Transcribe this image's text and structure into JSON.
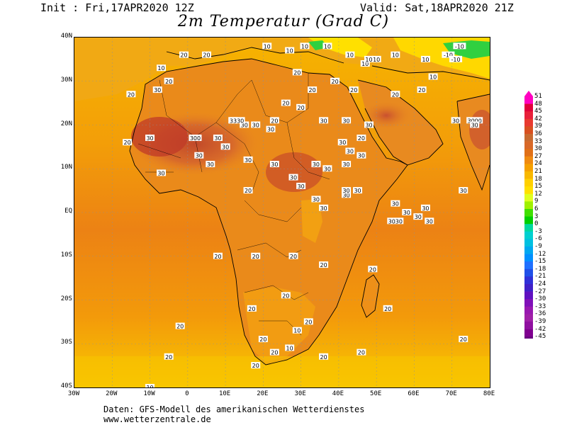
{
  "header": {
    "init": "Init : Fri,17APR2020 12Z",
    "valid": "Valid: Sat,18APR2020 21Z",
    "title": "2m Temperatur (Grad C)"
  },
  "footer": {
    "line1": "Daten: GFS-Modell des amerikanischen Wetterdienstes",
    "line2": "www.wetterzentrale.de"
  },
  "axes": {
    "lat_labels": [
      "40N",
      "30N",
      "20N",
      "10N",
      "EQ",
      "10S",
      "20S",
      "30S",
      "40S"
    ],
    "lon_labels": [
      "30W",
      "20W",
      "10W",
      "0",
      "10E",
      "20E",
      "30E",
      "40E",
      "50E",
      "60E",
      "70E",
      "80E"
    ]
  },
  "colorbar": {
    "labels": [
      "51",
      "48",
      "45",
      "42",
      "39",
      "36",
      "33",
      "30",
      "27",
      "24",
      "21",
      "18",
      "15",
      "12",
      "9",
      "6",
      "3",
      "0",
      "-3",
      "-6",
      "-9",
      "-12",
      "-15",
      "-18",
      "-21",
      "-24",
      "-27",
      "-30",
      "-33",
      "-36",
      "-39",
      "-42",
      "-45"
    ],
    "colors": [
      "#ff00c0",
      "#e0003a",
      "#e8203a",
      "#e83a30",
      "#d85020",
      "#c86a30",
      "#d86828",
      "#e07018",
      "#ef8a10",
      "#f5a000",
      "#f8b800",
      "#ffd000",
      "#ffe000",
      "#e0ff20",
      "#a0f000",
      "#40e000",
      "#00d000",
      "#00d8a0",
      "#00d0d0",
      "#00c0e0",
      "#00a8f0",
      "#0090ff",
      "#2070ff",
      "#2050e8",
      "#3030d8",
      "#4020c8",
      "#6010c0",
      "#8010b8",
      "#9818b0",
      "#a020a8",
      "#9010a0",
      "#800090",
      "#6a0080"
    ]
  },
  "map_labels": [
    {
      "text": "10",
      "lon": 21,
      "lat": 38
    },
    {
      "text": "10",
      "lon": 27,
      "lat": 37
    },
    {
      "text": "10",
      "lon": 43,
      "lat": 36
    },
    {
      "text": "10",
      "lon": 47,
      "lat": 34
    },
    {
      "text": "10",
      "lon": 50,
      "lat": 35
    },
    {
      "text": "10",
      "lon": 55,
      "lat": 36
    },
    {
      "text": "10",
      "lon": 63,
      "lat": 35
    },
    {
      "text": "10",
      "lon": 65,
      "lat": 31
    },
    {
      "text": "-10",
      "lon": 69,
      "lat": 36
    },
    {
      "text": "-10",
      "lon": 71,
      "lat": 35
    },
    {
      "text": "-10",
      "lon": 72,
      "lat": 38
    },
    {
      "text": "10",
      "lon": 31,
      "lat": 38
    },
    {
      "text": "10",
      "lon": 37,
      "lat": 38
    },
    {
      "text": "10",
      "lon": -7,
      "lat": 33
    },
    {
      "text": "10",
      "lon": 48,
      "lat": 35
    },
    {
      "text": "20",
      "lon": -1,
      "lat": 36
    },
    {
      "text": "20",
      "lon": 5,
      "lat": 36
    },
    {
      "text": "20",
      "lon": 29,
      "lat": 32
    },
    {
      "text": "20",
      "lon": 33,
      "lat": 28
    },
    {
      "text": "20",
      "lon": 39,
      "lat": 30
    },
    {
      "text": "20",
      "lon": 44,
      "lat": 28
    },
    {
      "text": "20",
      "lon": -15,
      "lat": 27
    },
    {
      "text": "20",
      "lon": -5,
      "lat": 30
    },
    {
      "text": "20",
      "lon": 26,
      "lat": 25
    },
    {
      "text": "20",
      "lon": 30,
      "lat": 24
    },
    {
      "text": "20",
      "lon": 23,
      "lat": 21
    },
    {
      "text": "20",
      "lon": 55,
      "lat": 27
    },
    {
      "text": "20",
      "lon": 62,
      "lat": 28
    },
    {
      "text": "20",
      "lon": -16,
      "lat": 16
    },
    {
      "text": "20",
      "lon": 46,
      "lat": 17
    },
    {
      "text": "20",
      "lon": 16,
      "lat": 5
    },
    {
      "text": "20",
      "lon": 8,
      "lat": -10
    },
    {
      "text": "20",
      "lon": 18,
      "lat": -10
    },
    {
      "text": "20",
      "lon": 28,
      "lat": -10
    },
    {
      "text": "20",
      "lon": 36,
      "lat": -12
    },
    {
      "text": "20",
      "lon": 26,
      "lat": -19
    },
    {
      "text": "20",
      "lon": 17,
      "lat": -22
    },
    {
      "text": "20",
      "lon": 32,
      "lat": -25
    },
    {
      "text": "20",
      "lon": -2,
      "lat": -26
    },
    {
      "text": "20",
      "lon": 20,
      "lat": -29
    },
    {
      "text": "20",
      "lon": 23,
      "lat": -32
    },
    {
      "text": "20",
      "lon": 36,
      "lat": -33
    },
    {
      "text": "20",
      "lon": 46,
      "lat": -32
    },
    {
      "text": "20",
      "lon": -5,
      "lat": -33
    },
    {
      "text": "20",
      "lon": 18,
      "lat": -35
    },
    {
      "text": "20",
      "lon": 53,
      "lat": -22
    },
    {
      "text": "20",
      "lon": 49,
      "lat": -13
    },
    {
      "text": "20",
      "lon": 73,
      "lat": -29
    },
    {
      "text": "10",
      "lon": -10,
      "lat": -40
    },
    {
      "text": "10",
      "lon": 27,
      "lat": -31
    },
    {
      "text": "10",
      "lon": 29,
      "lat": -27
    },
    {
      "text": "30",
      "lon": -8,
      "lat": 28
    },
    {
      "text": "30",
      "lon": 12,
      "lat": 21
    },
    {
      "text": "30",
      "lon": 15,
      "lat": 20
    },
    {
      "text": "30",
      "lon": 18,
      "lat": 20
    },
    {
      "text": "30",
      "lon": 22,
      "lat": 19
    },
    {
      "text": "30",
      "lon": 8,
      "lat": 17
    },
    {
      "text": "30",
      "lon": 3,
      "lat": 13
    },
    {
      "text": "30",
      "lon": -10,
      "lat": 17
    },
    {
      "text": "30",
      "lon": 10,
      "lat": 15
    },
    {
      "text": "30",
      "lon": 6,
      "lat": 11
    },
    {
      "text": "30",
      "lon": -7,
      "lat": 9
    },
    {
      "text": "30",
      "lon": 16,
      "lat": 12
    },
    {
      "text": "30",
      "lon": 23,
      "lat": 11
    },
    {
      "text": "30",
      "lon": 28,
      "lat": 8
    },
    {
      "text": "30",
      "lon": 34,
      "lat": 11
    },
    {
      "text": "30",
      "lon": 37,
      "lat": 10
    },
    {
      "text": "30",
      "lon": 42,
      "lat": 11
    },
    {
      "text": "30",
      "lon": 30,
      "lat": 6
    },
    {
      "text": "30",
      "lon": 34,
      "lat": 3
    },
    {
      "text": "30",
      "lon": 36,
      "lat": 1
    },
    {
      "text": "30",
      "lon": 42,
      "lat": 4
    },
    {
      "text": "30",
      "lon": 42,
      "lat": 5
    },
    {
      "text": "30",
      "lon": 45,
      "lat": 5
    },
    {
      "text": "30",
      "lon": 36,
      "lat": 21
    },
    {
      "text": "30",
      "lon": 42,
      "lat": 21
    },
    {
      "text": "30",
      "lon": 48,
      "lat": 20
    },
    {
      "text": "30",
      "lon": 41,
      "lat": 16
    },
    {
      "text": "30",
      "lon": 43,
      "lat": 14
    },
    {
      "text": "30",
      "lon": 46,
      "lat": 13
    },
    {
      "text": "30",
      "lon": 55,
      "lat": 2
    },
    {
      "text": "30",
      "lon": 58,
      "lat": 0
    },
    {
      "text": "30",
      "lon": 61,
      "lat": -1
    },
    {
      "text": "30",
      "lon": 63,
      "lat": 1
    },
    {
      "text": "30",
      "lon": 64,
      "lat": -2
    },
    {
      "text": "30",
      "lon": 73,
      "lat": 5
    },
    {
      "text": "30",
      "lon": 71,
      "lat": 21
    },
    {
      "text": "3000",
      "lon": 76,
      "lat": 21
    },
    {
      "text": "30",
      "lon": 76,
      "lat": 20
    },
    {
      "text": "3330",
      "lon": 13,
      "lat": 21
    },
    {
      "text": "300",
      "lon": 2,
      "lat": 17
    },
    {
      "text": "3030",
      "lon": 55,
      "lat": -2
    }
  ]
}
